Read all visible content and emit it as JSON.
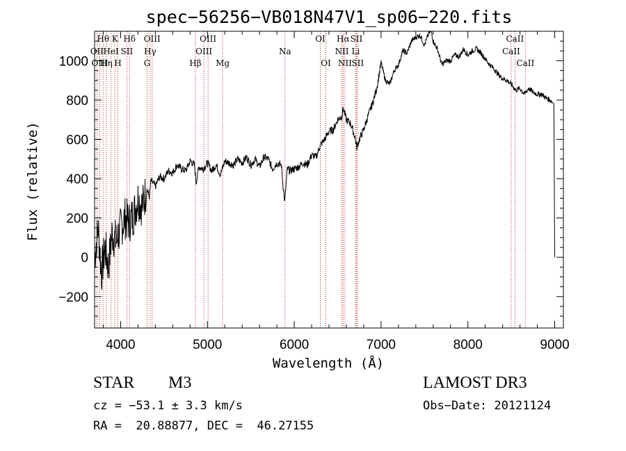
{
  "colors": {
    "line_marker": "#b22222",
    "spectrum": "#000000"
  },
  "info": {
    "class_label": "STAR",
    "subclass": "M3",
    "survey": "LAMOST DR3",
    "cz": "cz = −53.1 ± 3.3 km/s",
    "obs_date": "Obs−Date: 20121124",
    "coords": "RA =  20.88877, DEC =  46.27155"
  },
  "chart_data": {
    "type": "line",
    "title": "spec−56256−VB018N47V1_sp06−220.fits",
    "xlabel": "Wavelength (Å)",
    "ylabel": "Flux (relative)",
    "xlim": [
      3700,
      9100
    ],
    "ylim": [
      -360,
      1150
    ],
    "x_ticks": [
      4000,
      5000,
      6000,
      7000,
      8000,
      9000
    ],
    "x_tick_labels": [
      "4000",
      "5000",
      "6000",
      "7000",
      "8000",
      "9000"
    ],
    "y_ticks": [
      -200,
      0,
      200,
      400,
      600,
      800,
      1000
    ],
    "y_tick_labels": [
      "−200",
      "0",
      "200",
      "400",
      "600",
      "800",
      "1000"
    ],
    "series": [
      {
        "name": "spectrum",
        "x": [
          3700,
          3740,
          3780,
          3820,
          3860,
          3900,
          3950,
          4000,
          4050,
          4100,
          4150,
          4200,
          4250,
          4300,
          4330,
          4350,
          4400,
          4450,
          4500,
          4550,
          4600,
          4650,
          4700,
          4750,
          4800,
          4850,
          4870,
          4900,
          4950,
          5000,
          5050,
          5100,
          5150,
          5200,
          5250,
          5300,
          5350,
          5400,
          5450,
          5500,
          5550,
          5600,
          5650,
          5700,
          5750,
          5800,
          5850,
          5890,
          5920,
          5950,
          6000,
          6050,
          6100,
          6150,
          6200,
          6250,
          6300,
          6350,
          6400,
          6450,
          6500,
          6550,
          6563,
          6600,
          6650,
          6700,
          6720,
          6750,
          6800,
          6850,
          6900,
          6950,
          7000,
          7050,
          7100,
          7150,
          7200,
          7250,
          7300,
          7350,
          7400,
          7450,
          7500,
          7550,
          7580,
          7600,
          7650,
          7700,
          7750,
          7800,
          7850,
          7900,
          7950,
          8000,
          8050,
          8100,
          8150,
          8200,
          8250,
          8300,
          8350,
          8400,
          8450,
          8500,
          8550,
          8600,
          8650,
          8700,
          8750,
          8800,
          8850,
          8900,
          8950,
          8990,
          9000
        ],
        "y": [
          0,
          150,
          -80,
          50,
          -50,
          120,
          80,
          150,
          200,
          180,
          220,
          300,
          260,
          350,
          310,
          390,
          360,
          410,
          400,
          440,
          430,
          470,
          450,
          440,
          490,
          470,
          380,
          460,
          450,
          480,
          440,
          470,
          420,
          490,
          480,
          470,
          500,
          480,
          510,
          470,
          500,
          460,
          510,
          500,
          450,
          480,
          470,
          280,
          450,
          440,
          450,
          460,
          480,
          470,
          520,
          510,
          570,
          600,
          640,
          650,
          700,
          720,
          760,
          700,
          680,
          610,
          560,
          600,
          650,
          720,
          780,
          860,
          990,
          900,
          880,
          950,
          980,
          1050,
          1040,
          1100,
          1120,
          1130,
          1080,
          1140,
          1150,
          1100,
          1060,
          980,
          1000,
          1000,
          1030,
          1020,
          1060,
          1030,
          1050,
          1060,
          1040,
          1010,
          980,
          960,
          930,
          910,
          900,
          880,
          850,
          860,
          830,
          860,
          840,
          830,
          830,
          810,
          800,
          780,
          0
        ]
      }
    ],
    "line_markers": [
      {
        "name": "Hθ",
        "wavelength": 3798,
        "row": 0
      },
      {
        "name": "OII",
        "wavelength": 3727,
        "row": 1
      },
      {
        "name": "OIII",
        "wavelength": 3760,
        "row": 2
      },
      {
        "name": "Hη",
        "wavelength": 3835,
        "row": 2
      },
      {
        "name": "HeI",
        "wavelength": 3889,
        "row": 1
      },
      {
        "name": "K",
        "wavelength": 3934,
        "row": 0
      },
      {
        "name": "H",
        "wavelength": 3968,
        "row": 2
      },
      {
        "name": "SII",
        "wavelength": 4072,
        "row": 1
      },
      {
        "name": "Hδ",
        "wavelength": 4102,
        "row": 0
      },
      {
        "name": "OIII",
        "wavelength": 4363,
        "row": 0
      },
      {
        "name": "Hγ",
        "wavelength": 4340,
        "row": 1
      },
      {
        "name": "G",
        "wavelength": 4305,
        "row": 2
      },
      {
        "name": "Hβ",
        "wavelength": 4861,
        "row": 2
      },
      {
        "name": "OIII",
        "wavelength": 5007,
        "row": 0
      },
      {
        "name": "OIII",
        "wavelength": 4959,
        "row": 1
      },
      {
        "name": "Mg",
        "wavelength": 5175,
        "row": 2
      },
      {
        "name": "Na",
        "wavelength": 5894,
        "row": 1
      },
      {
        "name": "OI",
        "wavelength": 6300,
        "row": 0
      },
      {
        "name": "OI",
        "wavelength": 6364,
        "row": 2
      },
      {
        "name": "Hα",
        "wavelength": 6563,
        "row": 0
      },
      {
        "name": "NII",
        "wavelength": 6548,
        "row": 1
      },
      {
        "name": "NII",
        "wavelength": 6583,
        "row": 2
      },
      {
        "name": "SII",
        "wavelength": 6716,
        "row": 0
      },
      {
        "name": "Li",
        "wavelength": 6708,
        "row": 1
      },
      {
        "name": "SII",
        "wavelength": 6731,
        "row": 2
      },
      {
        "name": "CaII",
        "wavelength": 8542,
        "row": 0
      },
      {
        "name": "CaII",
        "wavelength": 8498,
        "row": 1
      },
      {
        "name": "CaII",
        "wavelength": 8662,
        "row": 2
      }
    ]
  }
}
